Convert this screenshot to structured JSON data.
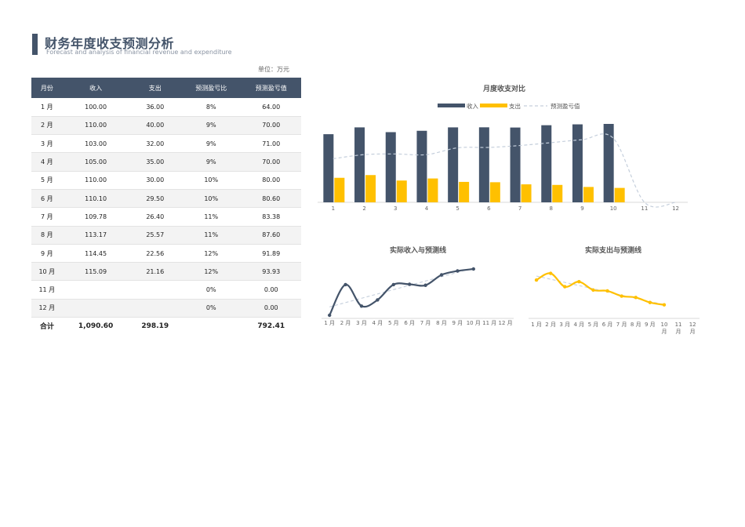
{
  "header": {
    "title": "财务年度收支预测分析",
    "subtitle": "Forecast and analysis of financial revenue and expenditure",
    "unit": "单位：万元"
  },
  "table": {
    "columns": [
      "月份",
      "收入",
      "支出",
      "预测盈亏比",
      "预测盈亏值"
    ],
    "rows": [
      [
        "1 月",
        "100.00",
        "36.00",
        "8%",
        "64.00"
      ],
      [
        "2 月",
        "110.00",
        "40.00",
        "9%",
        "70.00"
      ],
      [
        "3 月",
        "103.00",
        "32.00",
        "9%",
        "71.00"
      ],
      [
        "4 月",
        "105.00",
        "35.00",
        "9%",
        "70.00"
      ],
      [
        "5 月",
        "110.00",
        "30.00",
        "10%",
        "80.00"
      ],
      [
        "6 月",
        "110.10",
        "29.50",
        "10%",
        "80.60"
      ],
      [
        "7 月",
        "109.78",
        "26.40",
        "11%",
        "83.38"
      ],
      [
        "8 月",
        "113.17",
        "25.57",
        "11%",
        "87.60"
      ],
      [
        "9 月",
        "114.45",
        "22.56",
        "12%",
        "91.89"
      ],
      [
        "10 月",
        "115.09",
        "21.16",
        "12%",
        "93.93"
      ],
      [
        "11 月",
        "",
        "",
        "0%",
        "0.00"
      ],
      [
        "12 月",
        "",
        "",
        "0%",
        "0.00"
      ]
    ],
    "total": [
      "合计",
      "1,090.60",
      "298.19",
      "",
      "792.41"
    ]
  },
  "colors": {
    "navy": "#44546a",
    "gold": "#ffc000",
    "dash": "#c5cfdc"
  },
  "chart_data": [
    {
      "type": "bar",
      "title": "月度收支对比",
      "categories": [
        "1",
        "2",
        "3",
        "4",
        "5",
        "6",
        "7",
        "8",
        "9",
        "10",
        "11",
        "12"
      ],
      "series": [
        {
          "name": "收入",
          "values": [
            100.0,
            110.0,
            103.0,
            105.0,
            110.0,
            110.1,
            109.78,
            113.17,
            114.45,
            115.09,
            null,
            null
          ]
        },
        {
          "name": "支出",
          "values": [
            36.0,
            40.0,
            32.0,
            35.0,
            30.0,
            29.5,
            26.4,
            25.57,
            22.56,
            21.16,
            null,
            null
          ]
        },
        {
          "name": "预测盈亏值",
          "type": "line",
          "values": [
            64.0,
            70.0,
            71.0,
            70.0,
            80.0,
            80.6,
            83.38,
            87.6,
            91.89,
            93.93,
            0.0,
            0.0
          ]
        }
      ],
      "ylim": [
        0,
        115.09
      ],
      "legend": "top"
    },
    {
      "type": "line",
      "title": "实际收入与预测线",
      "categories": [
        "1 月",
        "2 月",
        "3 月",
        "4 月",
        "5 月",
        "6 月",
        "7 月",
        "8 月",
        "9 月",
        "10 月",
        "11 月",
        "12 月"
      ],
      "values": [
        100.0,
        110.0,
        103.0,
        105.0,
        110.0,
        110.1,
        109.78,
        113.17,
        114.45,
        115.09,
        null,
        null
      ],
      "ylim": [
        100,
        115.09
      ]
    },
    {
      "type": "line",
      "title": "实际支出与预测线",
      "categories": [
        "1 月",
        "2 月",
        "3 月",
        "4 月",
        "5 月",
        "6 月",
        "7 月",
        "8 月",
        "9 月",
        "10 月",
        "11 月",
        "12 月"
      ],
      "values": [
        36.0,
        40.0,
        32.0,
        35.0,
        30.0,
        29.5,
        26.4,
        25.57,
        22.56,
        21.16,
        null,
        null
      ],
      "ylim": [
        14,
        44
      ]
    }
  ]
}
